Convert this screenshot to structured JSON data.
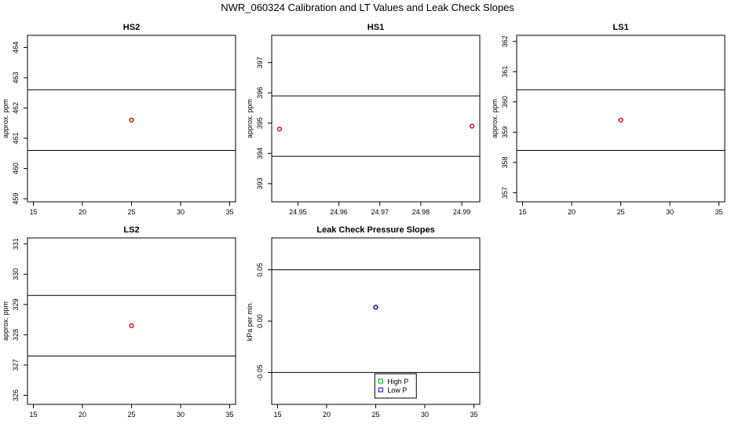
{
  "figure": {
    "title": "NWR_060324  Calibration and LT Values and Leak Check Slopes"
  },
  "chart_data": [
    {
      "type": "scatter",
      "title": "HS2",
      "xlabel": "",
      "ylabel": "approx. ppm",
      "xlim": [
        14.4,
        35.6
      ],
      "ylim": [
        458.9,
        464.4
      ],
      "xticks": [
        "15",
        "20",
        "25",
        "30",
        "35"
      ],
      "yticks": [
        "459",
        "460",
        "461",
        "462",
        "463",
        "464"
      ],
      "hlines": [
        462.6,
        460.6
      ],
      "series": [
        {
          "color": "#e00000",
          "x": [
            25
          ],
          "y": [
            461.6
          ]
        }
      ]
    },
    {
      "type": "scatter",
      "title": "HS1",
      "xlabel": "",
      "ylabel": "approx. ppm",
      "xlim": [
        24.9436,
        24.9944
      ],
      "ylim": [
        392.4,
        397.9
      ],
      "xticks": [
        "24.95",
        "24.96",
        "24.97",
        "24.98",
        "24.99"
      ],
      "yticks": [
        "393",
        "394",
        "395",
        "396",
        "397"
      ],
      "hlines": [
        395.9,
        393.9
      ],
      "series": [
        {
          "color": "#e00000",
          "x": [
            24.9455,
            24.9925
          ],
          "y": [
            394.8,
            394.9
          ]
        }
      ]
    },
    {
      "type": "scatter",
      "title": "LS1",
      "xlabel": "",
      "ylabel": "approx. ppm",
      "xlim": [
        14.4,
        35.6
      ],
      "ylim": [
        356.7,
        362.2
      ],
      "xticks": [
        "15",
        "20",
        "25",
        "30",
        "35"
      ],
      "yticks": [
        "357",
        "358",
        "359",
        "360",
        "361",
        "362"
      ],
      "hlines": [
        360.4,
        358.4
      ],
      "series": [
        {
          "color": "#e00000",
          "x": [
            25
          ],
          "y": [
            359.4
          ]
        }
      ]
    },
    {
      "type": "scatter",
      "title": "LS2",
      "xlabel": "",
      "ylabel": "approx. ppm",
      "xlim": [
        14.4,
        35.6
      ],
      "ylim": [
        325.7,
        331.2
      ],
      "xticks": [
        "15",
        "20",
        "25",
        "30",
        "35"
      ],
      "yticks": [
        "326",
        "327",
        "328",
        "329",
        "330",
        "331"
      ],
      "hlines": [
        329.3,
        327.3
      ],
      "series": [
        {
          "color": "#e00000",
          "x": [
            25
          ],
          "y": [
            328.3
          ]
        }
      ]
    },
    {
      "type": "scatter",
      "title": "Leak Check Pressure Slopes",
      "xlabel": "",
      "ylabel": "kPa per min.",
      "xlim": [
        14.4,
        35.6
      ],
      "ylim": [
        -0.081,
        0.081
      ],
      "xticks": [
        "15",
        "20",
        "25",
        "30",
        "35"
      ],
      "yticks": [
        "-0.05",
        "0.00",
        "0.05"
      ],
      "hlines": [
        0.05,
        -0.05
      ],
      "series": [
        {
          "name": "High P",
          "color": "#00a000",
          "x": [
            25
          ],
          "y": [
            0.0135
          ]
        },
        {
          "name": "Low P",
          "color": "#0000dd",
          "x": [
            25
          ],
          "y": [
            0.0135
          ]
        }
      ],
      "legend": {
        "position": "bottom-center"
      }
    }
  ]
}
